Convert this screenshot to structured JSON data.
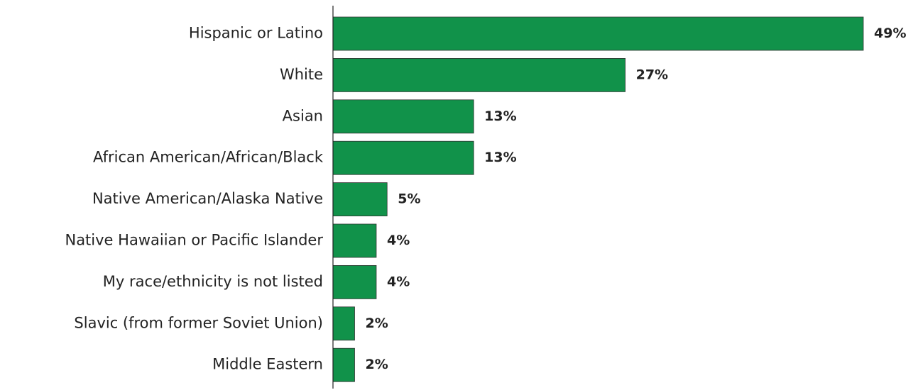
{
  "chart_data": {
    "type": "bar",
    "orientation": "horizontal",
    "title": "",
    "xlabel": "",
    "ylabel": "",
    "categories": [
      "Hispanic or Latino",
      "White",
      "Asian",
      "African American/African/Black",
      "Native American/Alaska Native",
      "Native Hawaiian or Pacific Islander",
      "My race/ethnicity is not listed",
      "Slavic (from former Soviet Union)",
      "Middle Eastern"
    ],
    "values": [
      49,
      27,
      13,
      13,
      5,
      4,
      4,
      2,
      2
    ],
    "value_labels": [
      "49%",
      "27%",
      "13%",
      "13%",
      "5%",
      "4%",
      "4%",
      "2%",
      "2%"
    ],
    "xlim": [
      0,
      49
    ],
    "grid": false,
    "bar_color": "#11924a"
  }
}
